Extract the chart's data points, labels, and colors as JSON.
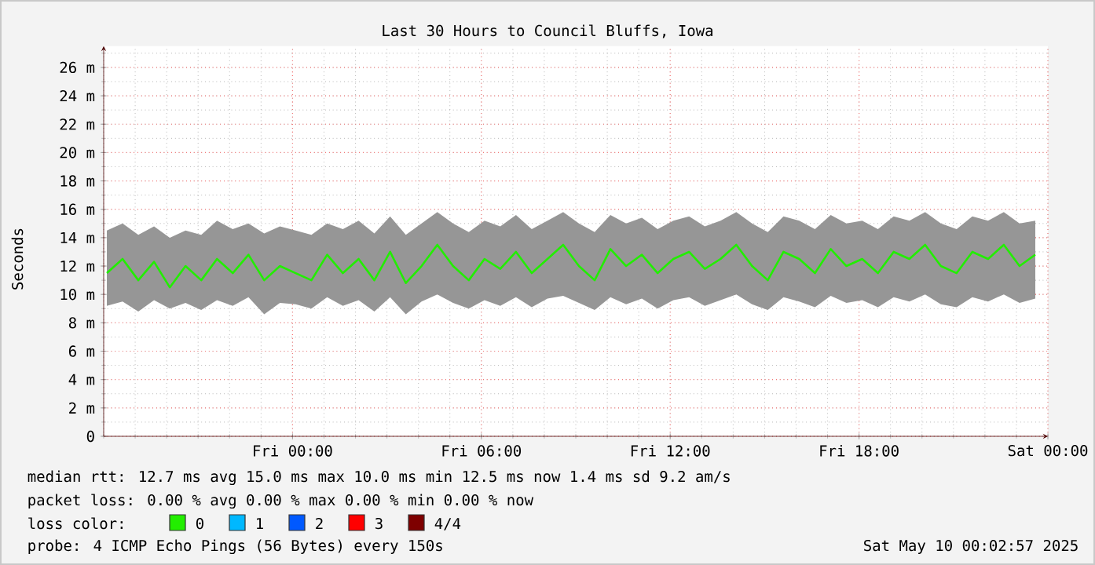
{
  "chart_data": {
    "type": "line",
    "title": "Last 30 Hours to Council Bluffs, Iowa",
    "ylabel": "Seconds",
    "x": [
      "2025-05-08T18:06",
      "2025-05-08T18:36",
      "2025-05-08T19:06",
      "2025-05-08T19:36",
      "2025-05-08T20:06",
      "2025-05-08T20:36",
      "2025-05-08T21:06",
      "2025-05-08T21:36",
      "2025-05-08T22:06",
      "2025-05-08T22:36",
      "2025-05-08T23:06",
      "2025-05-08T23:36",
      "2025-05-09T00:06",
      "2025-05-09T00:36",
      "2025-05-09T01:06",
      "2025-05-09T01:36",
      "2025-05-09T02:06",
      "2025-05-09T02:36",
      "2025-05-09T03:06",
      "2025-05-09T03:36",
      "2025-05-09T04:06",
      "2025-05-09T04:36",
      "2025-05-09T05:06",
      "2025-05-09T05:36",
      "2025-05-09T06:06",
      "2025-05-09T06:36",
      "2025-05-09T07:06",
      "2025-05-09T07:36",
      "2025-05-09T08:06",
      "2025-05-09T08:36",
      "2025-05-09T09:06",
      "2025-05-09T09:36",
      "2025-05-09T10:06",
      "2025-05-09T10:36",
      "2025-05-09T11:06",
      "2025-05-09T11:36",
      "2025-05-09T12:06",
      "2025-05-09T12:36",
      "2025-05-09T13:06",
      "2025-05-09T13:36",
      "2025-05-09T14:06",
      "2025-05-09T14:36",
      "2025-05-09T15:06",
      "2025-05-09T15:36",
      "2025-05-09T16:06",
      "2025-05-09T16:36",
      "2025-05-09T17:06",
      "2025-05-09T17:36",
      "2025-05-09T18:06",
      "2025-05-09T18:36",
      "2025-05-09T19:06",
      "2025-05-09T19:36",
      "2025-05-09T20:06",
      "2025-05-09T20:36",
      "2025-05-09T21:06",
      "2025-05-09T21:36",
      "2025-05-09T22:06",
      "2025-05-09T22:36",
      "2025-05-09T23:06",
      "2025-05-09T23:36"
    ],
    "series": [
      {
        "name": "0",
        "color": "#22ee00",
        "values": [
          11.5,
          12.5,
          11,
          12.3,
          10.5,
          12,
          11,
          12.5,
          11.5,
          12.8,
          11,
          12,
          11.5,
          11,
          12.8,
          11.5,
          12.5,
          11,
          13,
          10.8,
          12,
          13.5,
          12,
          11,
          12.5,
          11.8,
          13,
          11.5,
          12.5,
          13.5,
          12,
          11,
          13.2,
          12,
          12.8,
          11.5,
          12.5,
          13,
          11.8,
          12.5,
          13.5,
          12,
          11,
          13,
          12.5,
          11.5,
          13.2,
          12,
          12.5,
          11.5,
          13,
          12.5,
          13.5,
          12,
          11.5,
          13,
          12.5,
          13.5,
          12,
          12.8
        ],
        "lower": [
          9.2,
          9.5,
          8.8,
          9.6,
          9.0,
          9.4,
          8.9,
          9.6,
          9.2,
          9.8,
          8.6,
          9.4,
          9.3,
          9.0,
          9.8,
          9.2,
          9.6,
          8.8,
          9.8,
          8.6,
          9.5,
          10.0,
          9.4,
          9.0,
          9.6,
          9.2,
          9.8,
          9.1,
          9.7,
          9.9,
          9.4,
          8.9,
          9.8,
          9.3,
          9.7,
          9.0,
          9.6,
          9.8,
          9.2,
          9.6,
          10.0,
          9.3,
          8.9,
          9.8,
          9.5,
          9.1,
          9.9,
          9.4,
          9.6,
          9.1,
          9.8,
          9.5,
          10.0,
          9.3,
          9.1,
          9.8,
          9.5,
          10.0,
          9.4,
          9.7
        ],
        "upper": [
          14.5,
          15.0,
          14.2,
          14.8,
          14.0,
          14.5,
          14.2,
          15.2,
          14.6,
          15.0,
          14.3,
          14.8,
          14.5,
          14.2,
          15.0,
          14.6,
          15.2,
          14.3,
          15.5,
          14.2,
          15.0,
          15.8,
          15.0,
          14.4,
          15.2,
          14.8,
          15.6,
          14.6,
          15.2,
          15.8,
          15.0,
          14.4,
          15.6,
          15.0,
          15.4,
          14.6,
          15.2,
          15.5,
          14.8,
          15.2,
          15.8,
          15.0,
          14.4,
          15.5,
          15.2,
          14.6,
          15.6,
          15.0,
          15.2,
          14.6,
          15.5,
          15.2,
          15.8,
          15.0,
          14.6,
          15.5,
          15.2,
          15.8,
          15.0,
          15.2
        ]
      },
      {
        "name": "1",
        "color": "#00b8ff",
        "values": [
          null,
          null,
          null,
          null,
          null,
          null,
          null,
          null,
          null,
          null,
          null,
          null,
          null,
          null,
          null,
          null,
          null,
          null,
          null,
          null,
          null,
          null,
          null,
          null,
          null,
          null,
          null,
          null,
          null,
          null,
          null,
          null,
          null,
          null,
          null,
          null,
          null,
          null,
          null,
          null,
          null,
          null,
          null,
          null,
          null,
          null,
          null,
          null,
          null,
          null,
          null,
          null,
          null,
          null,
          null,
          null,
          null,
          null,
          null,
          null
        ]
      },
      {
        "name": "2",
        "color": "#0059ff",
        "values": [
          null,
          null,
          null,
          null,
          null,
          null,
          null,
          null,
          null,
          null,
          null,
          null,
          null,
          null,
          null,
          null,
          null,
          null,
          null,
          null,
          null,
          null,
          null,
          null,
          null,
          null,
          null,
          null,
          null,
          null,
          null,
          null,
          null,
          null,
          null,
          null,
          null,
          null,
          null,
          null,
          null,
          null,
          null,
          null,
          null,
          null,
          null,
          null,
          null,
          null,
          null,
          null,
          null,
          null,
          null,
          null,
          null,
          null,
          null,
          null
        ]
      },
      {
        "name": "3",
        "color": "#ff0000",
        "values": [
          null,
          null,
          null,
          null,
          null,
          null,
          null,
          null,
          null,
          null,
          null,
          null,
          null,
          null,
          null,
          null,
          null,
          null,
          null,
          null,
          null,
          null,
          null,
          null,
          null,
          null,
          null,
          null,
          null,
          null,
          null,
          null,
          null,
          null,
          null,
          null,
          null,
          null,
          null,
          null,
          null,
          null,
          null,
          null,
          null,
          null,
          null,
          null,
          null,
          null,
          null,
          null,
          null,
          null,
          null,
          null,
          null,
          null,
          null,
          null
        ]
      },
      {
        "name": "4/4",
        "color": "#7e0000",
        "values": [
          null,
          null,
          null,
          null,
          null,
          null,
          null,
          null,
          null,
          null,
          null,
          null,
          null,
          null,
          null,
          null,
          null,
          null,
          null,
          null,
          null,
          null,
          null,
          null,
          null,
          null,
          null,
          null,
          null,
          null,
          null,
          null,
          null,
          null,
          null,
          null,
          null,
          null,
          null,
          null,
          null,
          null,
          null,
          null,
          null,
          null,
          null,
          null,
          null,
          null,
          null,
          null,
          null,
          null,
          null,
          null,
          null,
          null,
          null,
          null
        ]
      }
    ],
    "legend": "bottom",
    "legend_title": "loss color:",
    "xlim": [
      "2025-05-08T18:00",
      "2025-05-10T00:00"
    ],
    "xticks": [
      {
        "value": "2025-05-09T00:00",
        "label": "Fri 00:00"
      },
      {
        "value": "2025-05-09T06:00",
        "label": "Fri 06:00"
      },
      {
        "value": "2025-05-09T12:00",
        "label": "Fri 12:00"
      },
      {
        "value": "2025-05-09T18:00",
        "label": "Fri 18:00"
      },
      {
        "value": "2025-05-10T00:00",
        "label": "Sat 00:00"
      }
    ],
    "ylim": [
      0,
      27.5
    ],
    "yticks": [
      0,
      {
        "value": 2,
        "label": "2 m"
      },
      {
        "value": 4,
        "label": "4 m"
      },
      {
        "value": 6,
        "label": "6 m"
      },
      {
        "value": 8,
        "label": "8 m"
      },
      {
        "value": 10,
        "label": "10 m"
      },
      {
        "value": 12,
        "label": "12 m"
      },
      {
        "value": 14,
        "label": "14 m"
      },
      {
        "value": 16,
        "label": "16 m"
      },
      {
        "value": 18,
        "label": "18 m"
      },
      {
        "value": 20,
        "label": "20 m"
      },
      {
        "value": 22,
        "label": "22 m"
      },
      {
        "value": 24,
        "label": "24 m"
      },
      {
        "value": 26,
        "label": "26 m"
      }
    ],
    "grid": true,
    "marker": "none",
    "line_style": "solid",
    "annotations": [
      "median rtt:  12.7 ms avg  15.0 ms max  10.0 ms min  12.5 ms now  1.4 ms sd  9.2  am/s",
      "packet loss: 0.00 % avg  0.00 % max  0.00 % min  0.00 % now",
      "probe:  4 ICMP Echo Pings (56 Bytes) every 150s",
      "Sat May 10 00:02:57 2025"
    ]
  }
}
